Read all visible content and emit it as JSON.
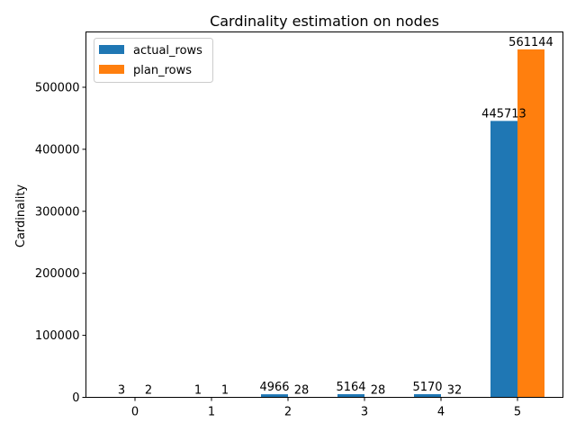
{
  "chart_data": {
    "type": "bar",
    "title": "Cardinality estimation on nodes",
    "xlabel": "",
    "ylabel": "Cardinality",
    "categories": [
      "0",
      "1",
      "2",
      "3",
      "4",
      "5"
    ],
    "series": [
      {
        "name": "actual_rows",
        "color": "#1f77b4",
        "values": [
          3,
          1,
          4966,
          5164,
          5170,
          445713
        ],
        "labels": [
          "3",
          "1",
          "4966",
          "5164",
          "5170",
          "445713"
        ]
      },
      {
        "name": "plan_rows",
        "color": "#ff7f0e",
        "values": [
          2,
          1,
          28,
          28,
          32,
          561144
        ],
        "labels": [
          "2",
          "1",
          "28",
          "28",
          "32",
          "561144"
        ]
      }
    ],
    "ylim": [
      0,
      589201
    ],
    "yticks": [
      0,
      100000,
      200000,
      300000,
      400000,
      500000
    ],
    "ytick_labels": [
      "0",
      "100000",
      "200000",
      "300000",
      "400000",
      "500000"
    ],
    "legend_position": "top-left",
    "grid": false
  }
}
